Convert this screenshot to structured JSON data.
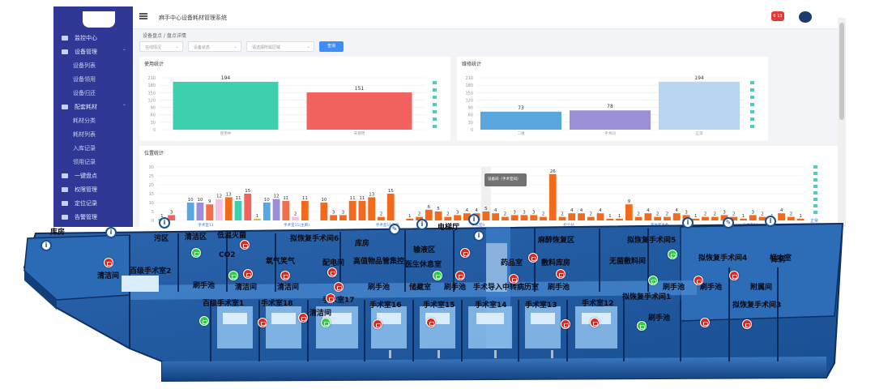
{
  "app": {
    "title": "麻手中心设备耗材管理系统",
    "breadcrumb": "设备盘点 / 盘点详情",
    "badge": "6 13"
  },
  "sidebar": {
    "items": [
      {
        "label": "监控中心",
        "type": "main",
        "icon": "monitor-icon"
      },
      {
        "label": "设备管理",
        "type": "main",
        "icon": "device-icon"
      },
      {
        "label": "设备列表",
        "type": "sub"
      },
      {
        "label": "设备领用",
        "type": "sub"
      },
      {
        "label": "设备归还",
        "type": "sub"
      },
      {
        "label": "配套耗材",
        "type": "main",
        "icon": "box-icon"
      },
      {
        "label": "耗材分类",
        "type": "sub"
      },
      {
        "label": "耗材列表",
        "type": "sub"
      },
      {
        "label": "入库记录",
        "type": "sub"
      },
      {
        "label": "领用记录",
        "type": "sub"
      },
      {
        "label": "一键盘点",
        "type": "main",
        "icon": "scan-icon"
      },
      {
        "label": "权限管理",
        "type": "main",
        "icon": "lock-icon"
      },
      {
        "label": "定位记录",
        "type": "main",
        "icon": "location-icon"
      },
      {
        "label": "告警管理",
        "type": "main",
        "icon": "alarm-icon"
      }
    ]
  },
  "filters": [
    {
      "placeholder": "在线情况"
    },
    {
      "placeholder": "设备状态"
    },
    {
      "placeholder": "请选择所属区域"
    }
  ],
  "query_button": "查询",
  "charts": {
    "usage": {
      "title": "使用统计",
      "type": "bar",
      "categories": [
        "使用中",
        "未使用"
      ],
      "values": [
        194,
        151
      ],
      "colors": [
        "#3ecfae",
        "#f2635f"
      ],
      "yticks": [
        0,
        30,
        60,
        90,
        120,
        150,
        180,
        210
      ]
    },
    "status": {
      "title": "维修统计",
      "type": "bar",
      "categories": [
        "二维",
        "手术间",
        "正常"
      ],
      "values": [
        73,
        78,
        194
      ],
      "colors": [
        "#5aa6df",
        "#9b8fd9",
        "#b8d6f2"
      ],
      "yticks": [
        0,
        30,
        60,
        90,
        120,
        150,
        180,
        210
      ]
    },
    "location": {
      "title": "位置统计",
      "type": "bar",
      "yticks": [
        0,
        5,
        10,
        15,
        20,
        25,
        30
      ],
      "values": [
        1,
        3,
        0,
        10,
        10,
        9,
        12,
        13,
        11,
        15,
        1,
        10,
        12,
        11,
        2,
        11,
        0,
        10,
        3,
        3,
        11,
        11,
        13,
        2,
        15,
        0,
        1,
        2,
        6,
        5,
        2,
        3,
        4,
        4,
        5,
        4,
        2,
        3,
        3,
        3,
        2,
        26,
        2,
        4,
        4,
        2,
        4,
        1,
        1,
        9,
        2,
        4,
        2,
        2,
        4,
        3,
        1,
        2,
        2,
        3,
        2,
        1,
        3,
        2,
        1,
        4,
        2,
        1
      ],
      "colors": [
        "#3ecfae",
        "#f2635f",
        "#e8b83d",
        "#5aa6df",
        "#9b8fd9",
        "#f06d4e",
        "#f2c3e2",
        "#f26b1d"
      ],
      "tooltip": "设备间（手术室间）",
      "xlabels": [
        "手术室11",
        "手术室11(主麻)",
        "手术室10走廊",
        "手术室9",
        "护士站",
        "液体库准备",
        "手术室20"
      ],
      "legend_right": "正常"
    }
  },
  "floor": {
    "labels": [
      {
        "text": "污区",
        "name": "room-dirty-zone"
      },
      {
        "text": "清洁区",
        "name": "room-clean-zone"
      },
      {
        "text": "低温灭菌",
        "name": "room-low-temp-sterilization"
      },
      {
        "text": "库房",
        "name": "room-storage-left"
      },
      {
        "text": "清洁间",
        "name": "room-cleaning-1"
      },
      {
        "text": "百级手术室2",
        "name": "room-or-2"
      },
      {
        "text": "CO2",
        "name": "room-co2"
      },
      {
        "text": "刷手池",
        "name": "room-scrub-1"
      },
      {
        "text": "清洁间",
        "name": "room-cleaning-2"
      },
      {
        "text": "氧气笑气",
        "name": "room-oxygen"
      },
      {
        "text": "清洁间",
        "name": "room-cleaning-3"
      },
      {
        "text": "百级手术室1",
        "name": "room-or-1"
      },
      {
        "text": "手术室18",
        "name": "room-or-18"
      },
      {
        "text": "清洁间",
        "name": "room-cleaning-4"
      },
      {
        "text": "拟恢复手术间6",
        "name": "room-recovery-6"
      },
      {
        "text": "配电间",
        "name": "room-power"
      },
      {
        "text": "库房",
        "name": "room-storage-mid"
      },
      {
        "text": "电梯厅",
        "name": "room-elevator-hall"
      },
      {
        "text": "输液区",
        "name": "room-infusion"
      },
      {
        "text": "高值物品管集控",
        "name": "room-high-value"
      },
      {
        "text": "医生休息室",
        "name": "room-doctor-lounge"
      },
      {
        "text": "手术室17",
        "name": "room-or-17"
      },
      {
        "text": "刷手池",
        "name": "room-scrub-2"
      },
      {
        "text": "储藏室",
        "name": "room-store"
      },
      {
        "text": "刷手池",
        "name": "room-scrub-3"
      },
      {
        "text": "手术室16",
        "name": "room-or-16"
      },
      {
        "text": "手术室15",
        "name": "room-or-15"
      },
      {
        "text": "手术室14",
        "name": "room-or-14"
      },
      {
        "text": "手术室13",
        "name": "room-or-13"
      },
      {
        "text": "手术室12",
        "name": "room-or-12"
      },
      {
        "text": "药品室",
        "name": "room-pharmacy"
      },
      {
        "text": "手术导入",
        "name": "room-surgery-entry"
      },
      {
        "text": "中转病历室",
        "name": "room-records"
      },
      {
        "text": "刷手池",
        "name": "room-scrub-4"
      },
      {
        "text": "麻醉恢复区",
        "name": "room-anesthesia-recovery"
      },
      {
        "text": "敷料库房",
        "name": "room-dressing-store"
      },
      {
        "text": "无菌敷料间",
        "name": "room-sterile-dressing"
      },
      {
        "text": "拟恢复手术间5",
        "name": "room-recovery-5"
      },
      {
        "text": "拟恢复手术间4",
        "name": "room-recovery-4"
      },
      {
        "text": "标本室",
        "name": "room-specimen"
      },
      {
        "text": "刷手池",
        "name": "room-scrub-5"
      },
      {
        "text": "刷手池",
        "name": "room-scrub-6"
      },
      {
        "text": "附属间",
        "name": "room-annex"
      },
      {
        "text": "拟恢复手术间3",
        "name": "room-recovery-3"
      },
      {
        "text": "拟恢复手术间1",
        "name": "room-recovery-1"
      },
      {
        "text": "刷手池",
        "name": "room-scrub-7"
      },
      {
        "text": "库房",
        "name": "room-storage-right"
      }
    ]
  }
}
